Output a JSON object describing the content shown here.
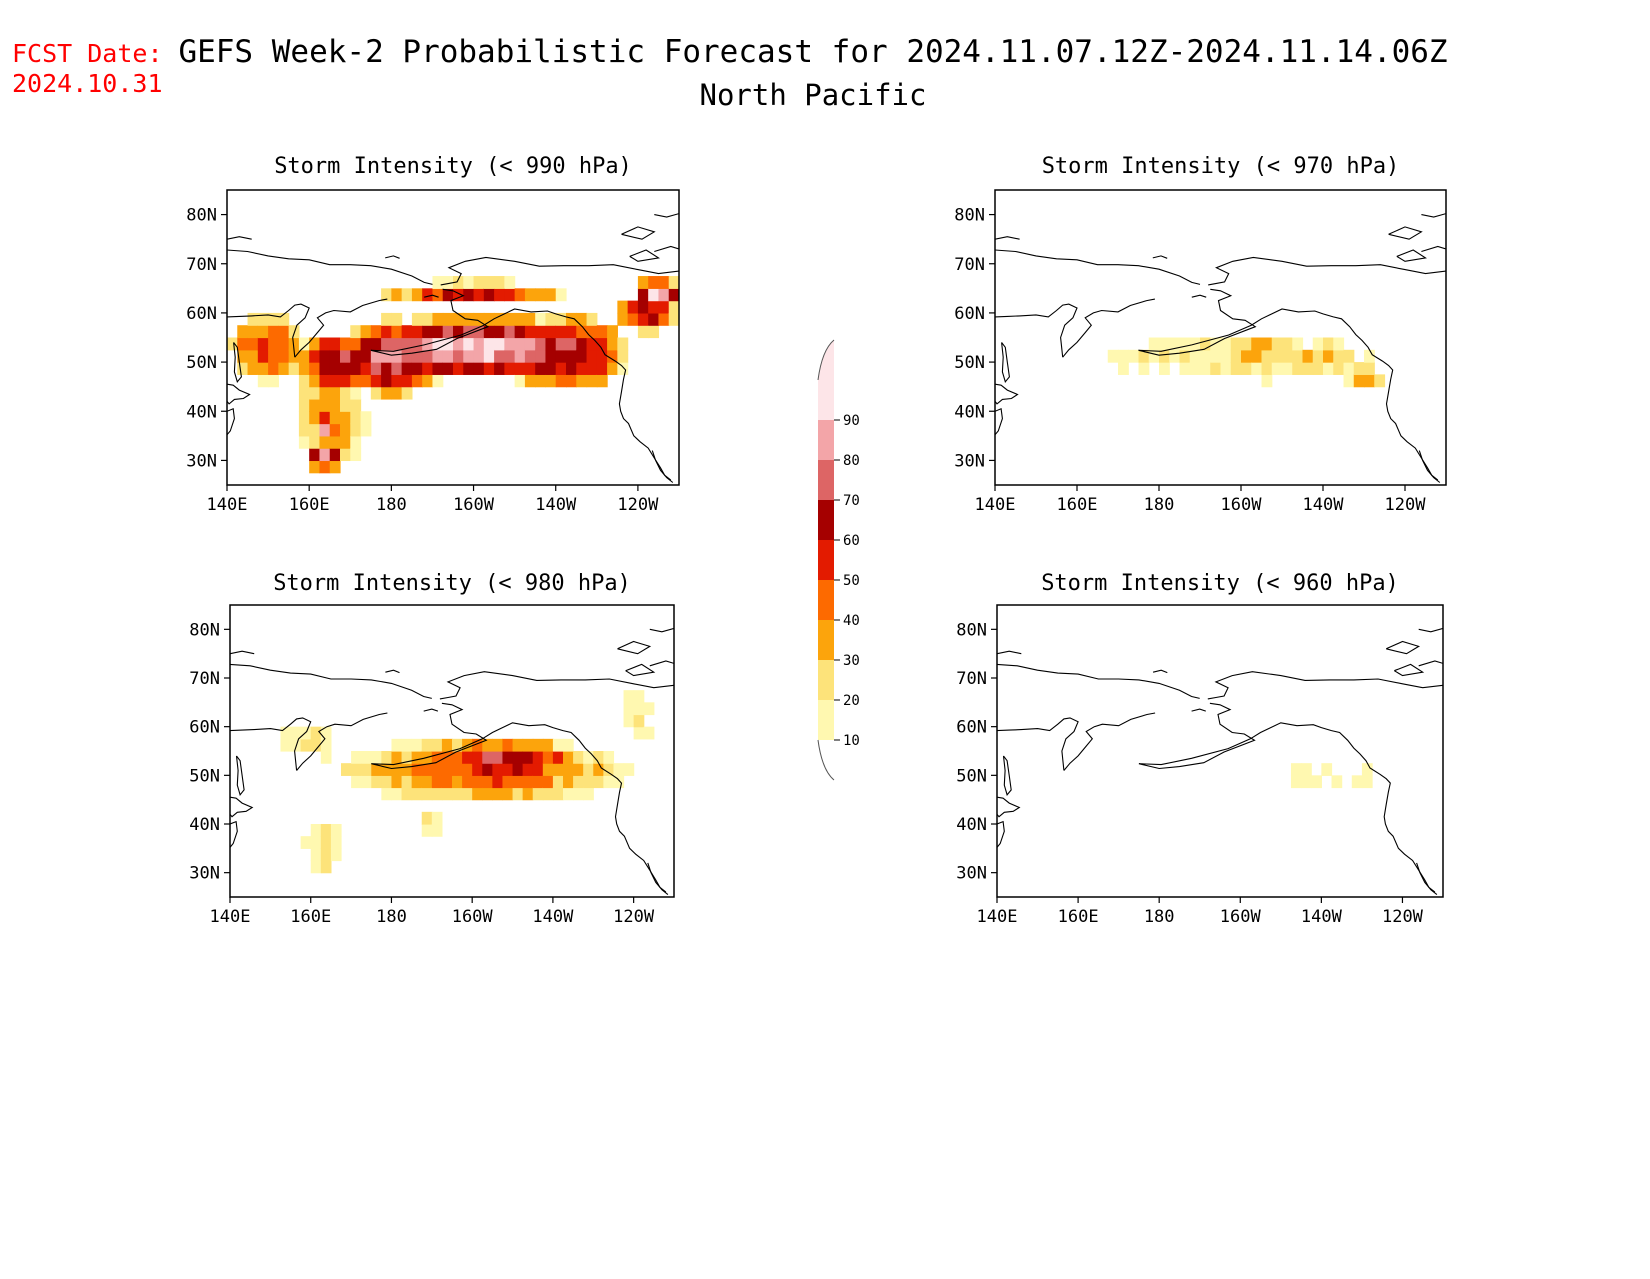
{
  "fcst": {
    "label": "FCST Date:",
    "date": "2024.10.31",
    "color": "#ff0000"
  },
  "title": {
    "line1": "GEFS Week-2 Probabilistic Forecast for 2024.11.07.12Z-2024.11.14.06Z",
    "line2": "North Pacific"
  },
  "axes": {
    "lat_labels": [
      "80N",
      "70N",
      "60N",
      "50N",
      "40N",
      "30N"
    ],
    "lon_labels": [
      "140E",
      "160E",
      "180",
      "160W",
      "140W",
      "120W"
    ],
    "lat_values": [
      80,
      70,
      60,
      50,
      40,
      30
    ],
    "lon_values": [
      140,
      160,
      180,
      200,
      220,
      240
    ]
  },
  "panels": [
    {
      "title": "Storm Intensity (< 990 hPa)"
    },
    {
      "title": "Storm Intensity (< 970 hPa)"
    },
    {
      "title": "Storm Intensity (< 980 hPa)"
    },
    {
      "title": "Storm Intensity (< 960 hPa)"
    }
  ],
  "legend": {
    "labels": [
      "10",
      "20",
      "30",
      "40",
      "50",
      "60",
      "70",
      "80",
      "90"
    ],
    "colors": [
      "#fff8b0",
      "#fde37a",
      "#fca40c",
      "#fd6a00",
      "#e31b00",
      "#a50000",
      "#dd6565",
      "#f3a5a8",
      "#fde5e8"
    ]
  },
  "chart_data": [
    {
      "type": "heatmap",
      "title": "Storm Intensity (< 990 hPa)",
      "xlim": [
        140,
        250
      ],
      "ylim": [
        25,
        85
      ],
      "blobs": [
        {
          "lon": 200,
          "lat": 53,
          "rlon": 34,
          "rlat": 6.5,
          "p": 92
        },
        {
          "lon": 180,
          "lat": 51,
          "rlon": 14,
          "rlat": 8,
          "p": 80
        },
        {
          "lon": 168,
          "lat": 50,
          "rlon": 13,
          "rlat": 6,
          "p": 72
        },
        {
          "lon": 222,
          "lat": 52,
          "rlon": 16,
          "rlat": 8,
          "p": 72
        },
        {
          "lon": 150,
          "lat": 53,
          "rlon": 9,
          "rlat": 7,
          "p": 55
        },
        {
          "lon": 165,
          "lat": 38,
          "rlon": 9,
          "rlat": 10,
          "p": 38
        },
        {
          "lon": 164,
          "lat": 31,
          "rlon": 5,
          "rlat": 3,
          "p": 82
        },
        {
          "lon": 164,
          "lat": 37,
          "rlon": 3,
          "rlat": 2.5,
          "p": 85
        },
        {
          "lon": 242,
          "lat": 60,
          "rlon": 8,
          "rlat": 4,
          "p": 68
        },
        {
          "lon": 245,
          "lat": 64,
          "rlon": 6,
          "rlat": 3,
          "p": 88
        },
        {
          "lon": 200,
          "lat": 64,
          "rlon": 22,
          "rlat": 2.5,
          "p": 60
        }
      ]
    },
    {
      "type": "heatmap",
      "title": "Storm Intensity (< 970 hPa)",
      "xlim": [
        140,
        250
      ],
      "ylim": [
        25,
        85
      ],
      "blobs": [
        {
          "lon": 200,
          "lat": 51,
          "rlon": 38,
          "rlat": 5,
          "p": 20
        },
        {
          "lon": 205,
          "lat": 52,
          "rlon": 10,
          "rlat": 3.5,
          "p": 36
        },
        {
          "lon": 220,
          "lat": 51,
          "rlon": 8,
          "rlat": 3.5,
          "p": 36
        },
        {
          "lon": 230,
          "lat": 47,
          "rlon": 5,
          "rlat": 2.5,
          "p": 38
        }
      ]
    },
    {
      "type": "heatmap",
      "title": "Storm Intensity (< 980 hPa)",
      "xlim": [
        140,
        250
      ],
      "ylim": [
        25,
        85
      ],
      "blobs": [
        {
          "lon": 203,
          "lat": 51,
          "rlon": 36,
          "rlat": 7,
          "p": 48
        },
        {
          "lon": 208,
          "lat": 53,
          "rlon": 20,
          "rlat": 4.5,
          "p": 68
        },
        {
          "lon": 205,
          "lat": 53,
          "rlon": 5,
          "rlat": 2,
          "p": 82
        },
        {
          "lon": 163,
          "lat": 35,
          "rlon": 5,
          "rlat": 6,
          "p": 22
        },
        {
          "lon": 240,
          "lat": 62,
          "rlon": 6,
          "rlat": 6,
          "p": 18
        },
        {
          "lon": 160,
          "lat": 57,
          "rlon": 8,
          "rlat": 4,
          "p": 22
        },
        {
          "lon": 190,
          "lat": 40,
          "rlon": 5,
          "rlat": 1.5,
          "p": 35
        }
      ]
    },
    {
      "type": "heatmap",
      "title": "Storm Intensity (< 960 hPa)",
      "xlim": [
        140,
        250
      ],
      "ylim": [
        25,
        85
      ],
      "blobs": [
        {
          "lon": 219,
          "lat": 50,
          "rlon": 8,
          "rlat": 2.5,
          "p": 18
        },
        {
          "lon": 230,
          "lat": 50,
          "rlon": 2.5,
          "rlat": 2,
          "p": 18
        }
      ]
    }
  ]
}
